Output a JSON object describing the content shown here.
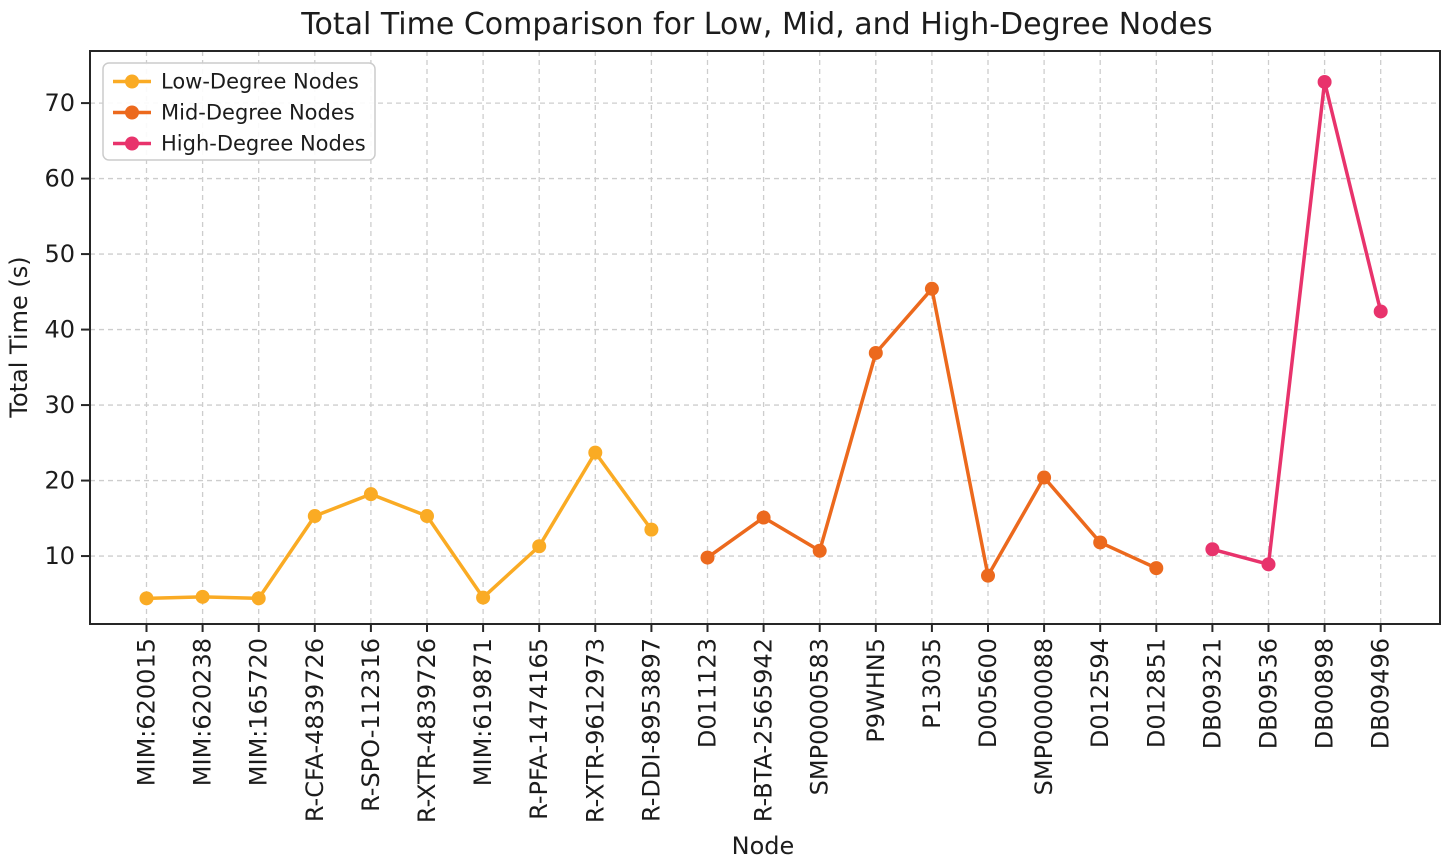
{
  "chart_data": {
    "type": "line",
    "title": "Total Time Comparison for Low, Mid, and High-Degree Nodes",
    "xlabel": "Node",
    "ylabel": "Total Time (s)",
    "categories": [
      "MIM:620015",
      "MIM:620238",
      "MIM:165720",
      "R-CFA-4839726",
      "R-SPO-112316",
      "R-XTR-4839726",
      "MIM:619871",
      "R-PFA-1474165",
      "R-XTR-9612973",
      "R-DDI-8953897",
      "D011123",
      "R-BTA-2565942",
      "SMP0000583",
      "P9WHN5",
      "P13035",
      "D005600",
      "SMP0000088",
      "D012594",
      "D012851",
      "DB09321",
      "DB09536",
      "DB00898",
      "DB09496"
    ],
    "series": [
      {
        "name": "Low-Degree Nodes",
        "color": "#FAAB24",
        "start_index": 0,
        "values": [
          4.4,
          4.6,
          4.4,
          15.3,
          18.2,
          15.3,
          4.5,
          11.3,
          23.7,
          13.5
        ]
      },
      {
        "name": "Mid-Degree Nodes",
        "color": "#EC691D",
        "start_index": 10,
        "values": [
          9.8,
          15.1,
          10.7,
          36.9,
          45.4,
          7.4,
          20.4,
          11.8,
          8.4
        ]
      },
      {
        "name": "High-Degree Nodes",
        "color": "#E8336C",
        "start_index": 19,
        "values": [
          10.9,
          8.9,
          72.8,
          42.4
        ]
      }
    ],
    "yticks": [
      10,
      20,
      30,
      40,
      50,
      60,
      70
    ],
    "ylim": [
      1.0,
      76.9
    ],
    "grid": true,
    "grid_style": "dashed",
    "legend_position": "upper left",
    "spine_color": "#262626",
    "grid_color": "#cdcdcd",
    "text_color": "#1c1c1c"
  }
}
